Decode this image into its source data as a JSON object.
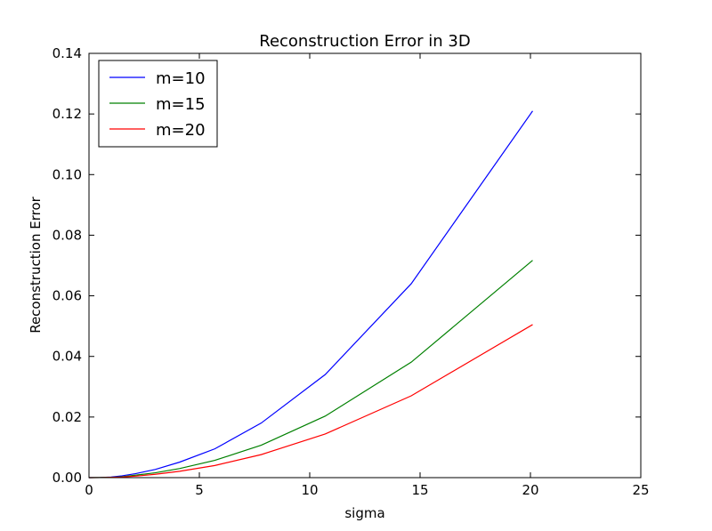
{
  "chart_data": {
    "type": "line",
    "title": "Reconstruction Error in 3D",
    "xlabel": "sigma",
    "ylabel": "Reconstruction Error",
    "xlim": [
      0,
      25
    ],
    "ylim": [
      0,
      0.14
    ],
    "xticks": [
      0,
      5,
      10,
      15,
      20,
      25
    ],
    "xtick_labels": [
      "0",
      "5",
      "10",
      "15",
      "20",
      "25"
    ],
    "yticks": [
      0,
      0.02,
      0.04,
      0.06,
      0.08,
      0.1,
      0.12,
      0.14
    ],
    "ytick_labels": [
      "0.00",
      "0.02",
      "0.04",
      "0.06",
      "0.08",
      "0.10",
      "0.12",
      "0.14"
    ],
    "grid": false,
    "legend": "top-left",
    "x": [
      0,
      0.5,
      1,
      1.5,
      2.1,
      3,
      4.1,
      5.7,
      7.8,
      10.7,
      14.6,
      20.1
    ],
    "series": [
      {
        "name": "m=10",
        "color": "#0000ff",
        "values": [
          0,
          5e-05,
          0.0002,
          0.0006,
          0.0013,
          0.0027,
          0.0051,
          0.0095,
          0.018,
          0.034,
          0.064,
          0.121
        ]
      },
      {
        "name": "m=15",
        "color": "#008000",
        "values": [
          0,
          3e-05,
          0.0001,
          0.0003,
          0.0008,
          0.0016,
          0.003,
          0.0057,
          0.0107,
          0.0203,
          0.0381,
          0.0717
        ]
      },
      {
        "name": "m=20",
        "color": "#ff0000",
        "values": [
          0,
          2e-05,
          8e-05,
          0.0002,
          0.0005,
          0.0011,
          0.0021,
          0.004,
          0.0076,
          0.0144,
          0.027,
          0.0505
        ]
      }
    ]
  }
}
